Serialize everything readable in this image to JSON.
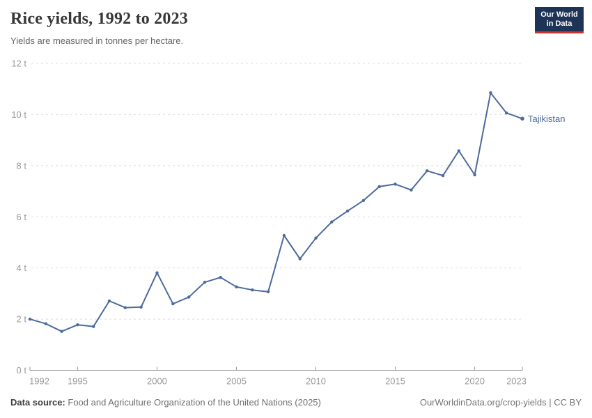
{
  "header": {
    "title": "Rice yields, 1992 to 2023",
    "subtitle": "Yields are measured in tonnes per hectare."
  },
  "logo": {
    "line1": "Our World",
    "line2": "in Data",
    "bg_color": "#1d3456",
    "accent_color": "#cf352c"
  },
  "chart_data": {
    "type": "line",
    "title": "Rice yields, 1992 to 2023",
    "xlabel": "",
    "ylabel": "tonnes per hectare",
    "unit": "t",
    "ylim": [
      0,
      12
    ],
    "yticks": [
      0,
      2,
      4,
      6,
      8,
      10,
      12
    ],
    "xticks": [
      1992,
      1995,
      2000,
      2005,
      2010,
      2015,
      2020,
      2023
    ],
    "grid": "horizontal-dashed",
    "legend_position": "end-of-line-label",
    "x": [
      1992,
      1993,
      1994,
      1995,
      1996,
      1997,
      1998,
      1999,
      2000,
      2001,
      2002,
      2003,
      2004,
      2005,
      2006,
      2007,
      2008,
      2009,
      2010,
      2011,
      2012,
      2013,
      2014,
      2015,
      2016,
      2017,
      2018,
      2019,
      2020,
      2021,
      2022,
      2023
    ],
    "series": [
      {
        "name": "Tajikistan",
        "color": "#4C6A9C",
        "values": [
          2.0,
          1.82,
          1.52,
          1.78,
          1.71,
          2.71,
          2.45,
          2.47,
          3.81,
          2.6,
          2.86,
          3.44,
          3.63,
          3.26,
          3.14,
          3.07,
          5.27,
          4.36,
          5.17,
          5.8,
          6.23,
          6.64,
          7.18,
          7.28,
          7.05,
          7.8,
          7.61,
          8.58,
          7.64,
          10.85,
          10.06,
          9.84
        ]
      }
    ]
  },
  "colors": {
    "line": "#4C6A9C",
    "axis_text": "#9a9a9a",
    "axis_line": "#999999",
    "grid": "#dedede",
    "title": "#383838",
    "subtitle": "#646464"
  },
  "footer": {
    "source_label": "Data source:",
    "source_text": "Food and Agriculture Organization of the United Nations (2025)",
    "credit": "OurWorldinData.org/crop-yields | CC BY"
  }
}
